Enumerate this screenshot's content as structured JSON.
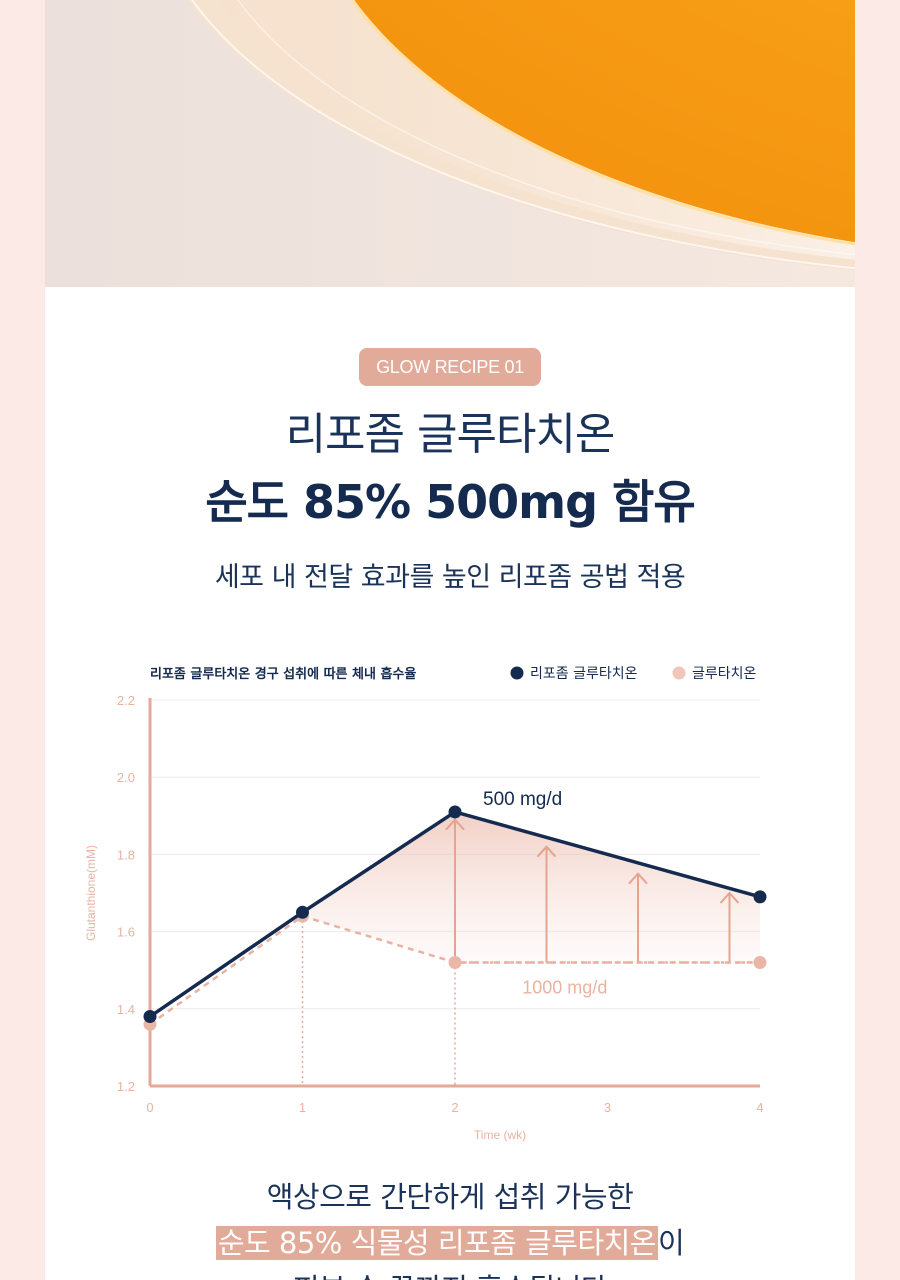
{
  "badge": "GLOW RECIPE 01",
  "title_line1": "리포좀 글루타치온",
  "title_line2": "순도 85% 500mg 함유",
  "subtitle": "세포 내 전달 효과를 높인 리포좀 공법 적용",
  "chart_data": {
    "type": "line",
    "title": "리포좀 글루타치온 경구 섭취에 따른 체내 흡수율",
    "xlabel": "Time (wk)",
    "ylabel": "Glutanthione(mM)",
    "x_ticks": [
      "0",
      "1",
      "2",
      "3",
      "4"
    ],
    "y_ticks": [
      "1.2",
      "1.4",
      "1.6",
      "1.8",
      "2.0",
      "2.2"
    ],
    "xlim": [
      0,
      4
    ],
    "ylim": [
      1.2,
      2.2
    ],
    "grid": true,
    "legend_position": "top-right",
    "series": [
      {
        "name": "리포좀 글루타치온",
        "color": "#142a4e",
        "style": "solid",
        "x": [
          0,
          1,
          2,
          4
        ],
        "y": [
          1.38,
          1.65,
          1.91,
          1.69
        ],
        "label": "500 mg/d"
      },
      {
        "name": "글루타치온",
        "color": "#e8b3a2",
        "style": "dashed",
        "x": [
          0,
          1,
          2,
          4
        ],
        "y": [
          1.36,
          1.64,
          1.52,
          1.52
        ],
        "label": "1000 mg/d"
      }
    ],
    "annotations": [
      {
        "type": "arrow",
        "x": 2.0,
        "from": 1.52,
        "to": 1.89
      },
      {
        "type": "arrow",
        "x": 2.6,
        "from": 1.52,
        "to": 1.82
      },
      {
        "type": "arrow",
        "x": 3.2,
        "from": 1.52,
        "to": 1.75
      },
      {
        "type": "arrow",
        "x": 3.8,
        "from": 1.52,
        "to": 1.7
      }
    ],
    "guide_lines_x": [
      1,
      2
    ]
  },
  "bottom": {
    "line1": "액상으로 간단하게 섭취 가능한",
    "line2_highlight": "순도 85% 식물성 리포좀 글루타치온",
    "line2_rest": "이",
    "line3": "피부 속 끝까지 흡수됩니다"
  },
  "colors": {
    "navy": "#142a4e",
    "salmon": "#e2aa98",
    "light_salmon": "#e8b3a2",
    "background": "#fbeae6"
  }
}
